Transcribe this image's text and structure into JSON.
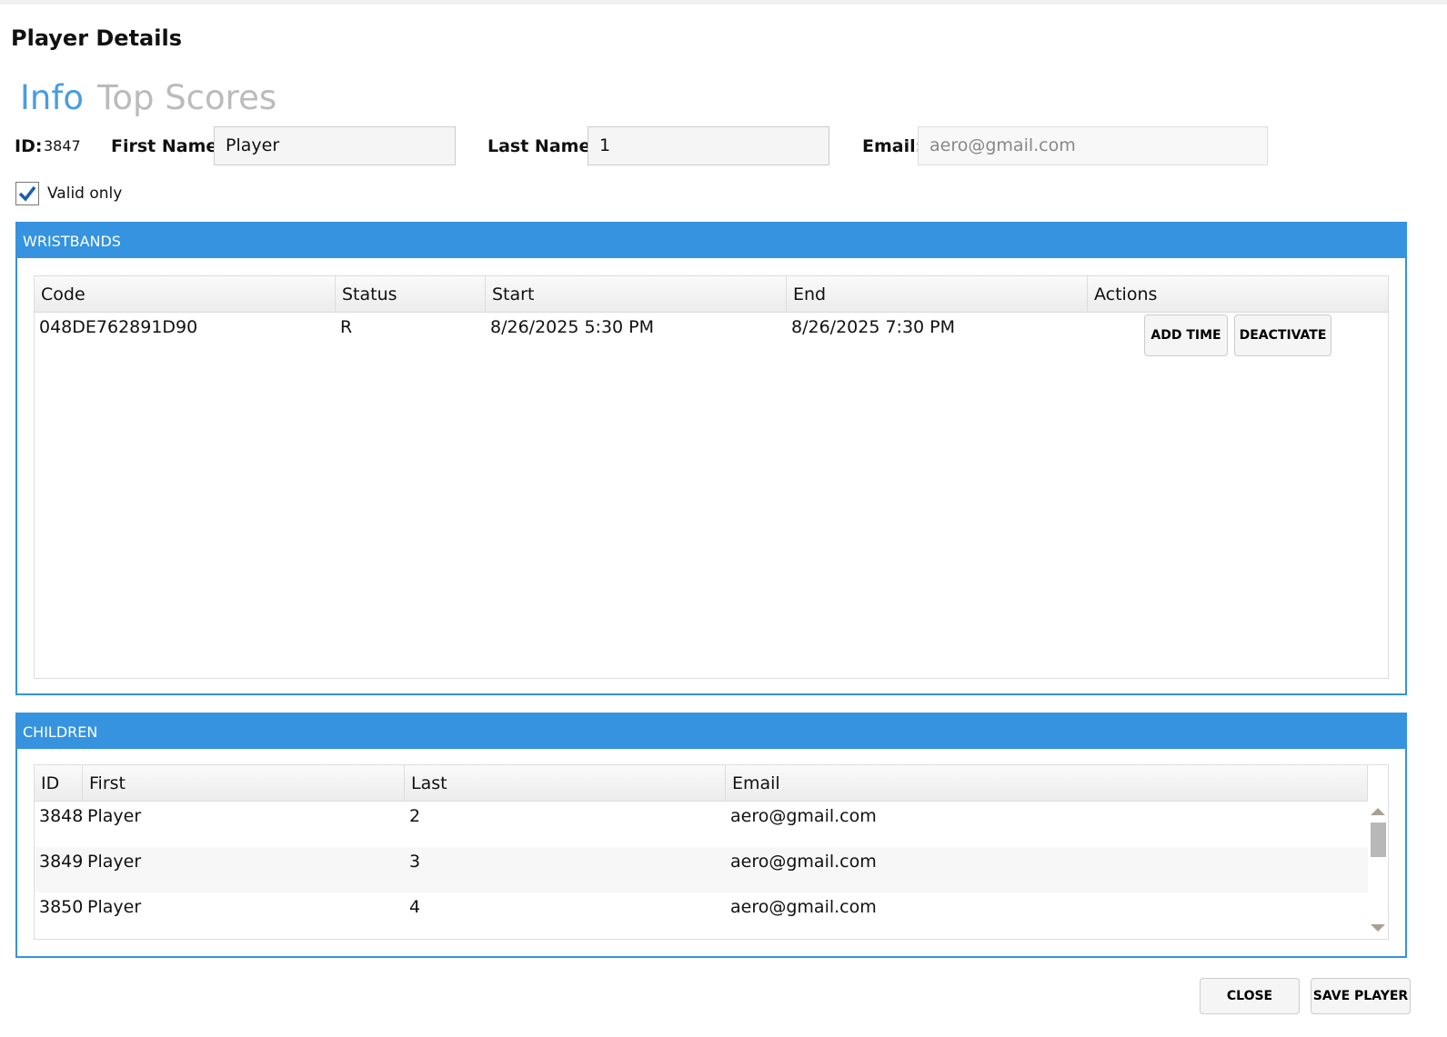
{
  "window": {
    "title": "Player Details"
  },
  "tabs": [
    {
      "label": "Info",
      "active": true
    },
    {
      "label": "Top Scores",
      "active": false
    }
  ],
  "colors": {
    "accent": "#3593df",
    "tab_active": "#4a9de0",
    "tab_inactive": "#bbbbbb"
  },
  "form": {
    "id_label": "ID:",
    "id_value": "3847",
    "first_name_label": "First Name:",
    "first_name": "Player",
    "last_name_label": "Last Name:",
    "last_name": "1",
    "email_label": "Email:",
    "email": "aero@gmail.com",
    "valid_only_label": "Valid only",
    "valid_only_checked": true
  },
  "wristbands": {
    "title": "WRISTBANDS",
    "columns": [
      "Code",
      "Status",
      "Start",
      "End",
      "Actions"
    ],
    "rows": [
      {
        "code": "048DE762891D90",
        "status": "R",
        "start": "8/26/2025 5:30 PM",
        "end": "8/26/2025 7:30 PM",
        "add_time": "ADD TIME",
        "deactivate": "DEACTIVATE"
      }
    ]
  },
  "children": {
    "title": "CHILDREN",
    "columns": [
      "ID",
      "First",
      "Last",
      "Email"
    ],
    "rows": [
      {
        "id": "3848",
        "first": "Player",
        "last": "2",
        "email": "aero@gmail.com"
      },
      {
        "id": "3849",
        "first": "Player",
        "last": "3",
        "email": "aero@gmail.com"
      },
      {
        "id": "3850",
        "first": "Player",
        "last": "4",
        "email": "aero@gmail.com"
      }
    ]
  },
  "footer": {
    "close": "CLOSE",
    "save": "SAVE PLAYER"
  }
}
